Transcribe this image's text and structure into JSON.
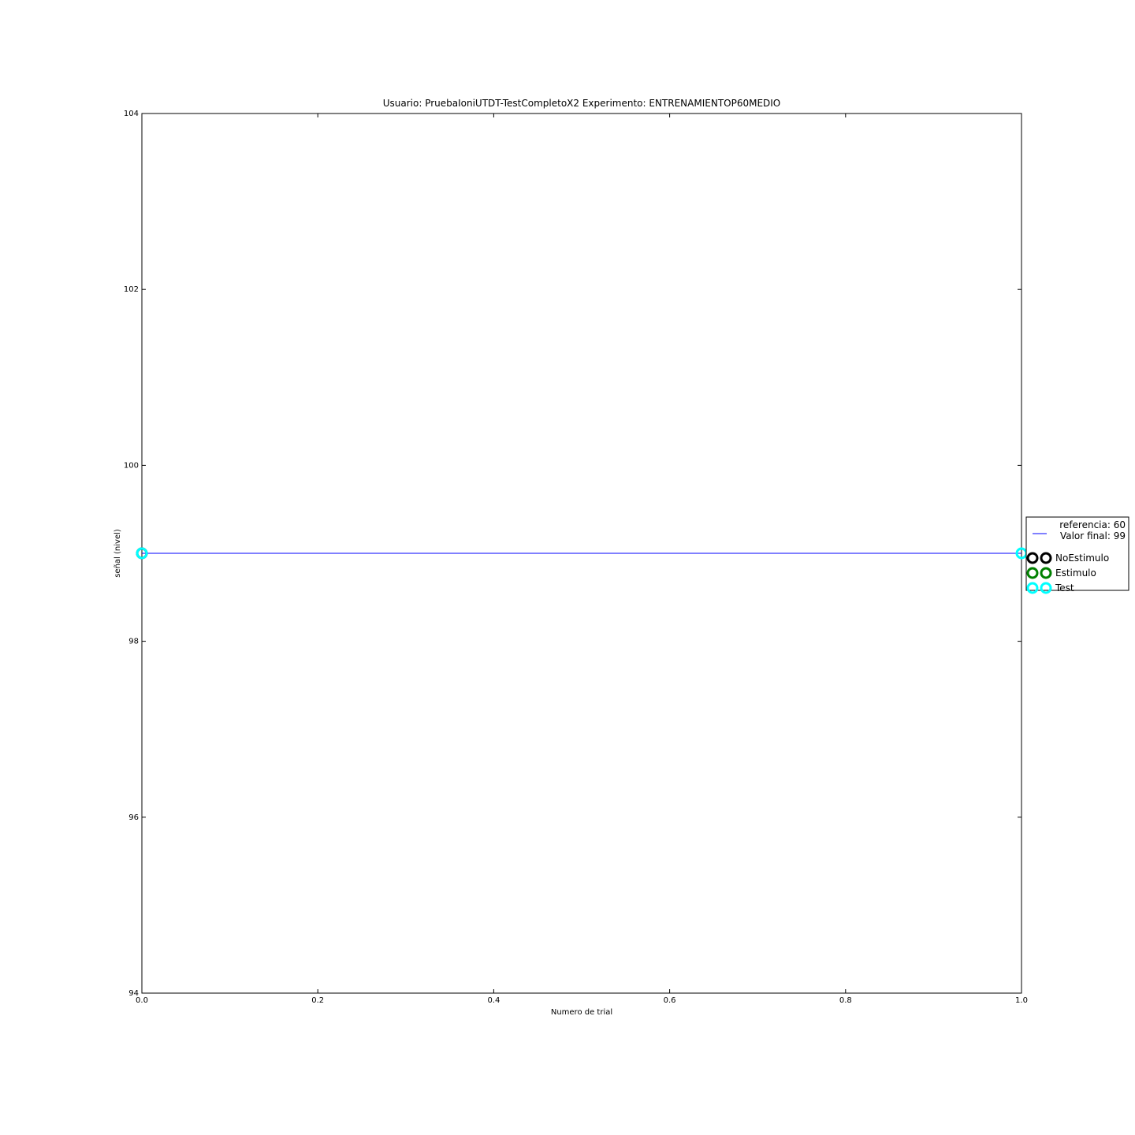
{
  "chart_data": {
    "type": "line",
    "title": "Usuario: PruebaIoniUTDT-TestCompletoX2 Experimento: ENTRENAMIENTOP60MEDIO",
    "xlabel": "Numero de trial",
    "ylabel": "señal (nivel)",
    "xlim": [
      0.0,
      1.0
    ],
    "ylim": [
      94,
      104
    ],
    "x_ticks": [
      0.0,
      0.2,
      0.4,
      0.6,
      0.8,
      1.0
    ],
    "x_tick_labels": [
      "0.0",
      "0.2",
      "0.4",
      "0.6",
      "0.8",
      "1.0"
    ],
    "y_ticks": [
      94,
      96,
      98,
      100,
      102,
      104
    ],
    "y_tick_labels": [
      "94",
      "96",
      "98",
      "100",
      "102",
      "104"
    ],
    "grid": false,
    "legend_position": "right",
    "series": [
      {
        "name": "referencia: 60\nValor final: 99",
        "legend_lines": [
          "referencia: 60",
          "Valor final: 99"
        ],
        "kind": "line",
        "color": "#0000ff",
        "x": [
          0.0,
          1.0
        ],
        "y": [
          99,
          99
        ]
      },
      {
        "name": "NoEstimulo",
        "kind": "marker",
        "color": "#000000",
        "x": [
          0.0
        ],
        "y": [
          99
        ]
      },
      {
        "name": "Estimulo",
        "kind": "marker",
        "color": "#008000",
        "x": [],
        "y": []
      },
      {
        "name": "Test",
        "kind": "marker",
        "color": "#00ffff",
        "x": [
          0.0,
          1.0
        ],
        "y": [
          99,
          99
        ]
      }
    ]
  }
}
